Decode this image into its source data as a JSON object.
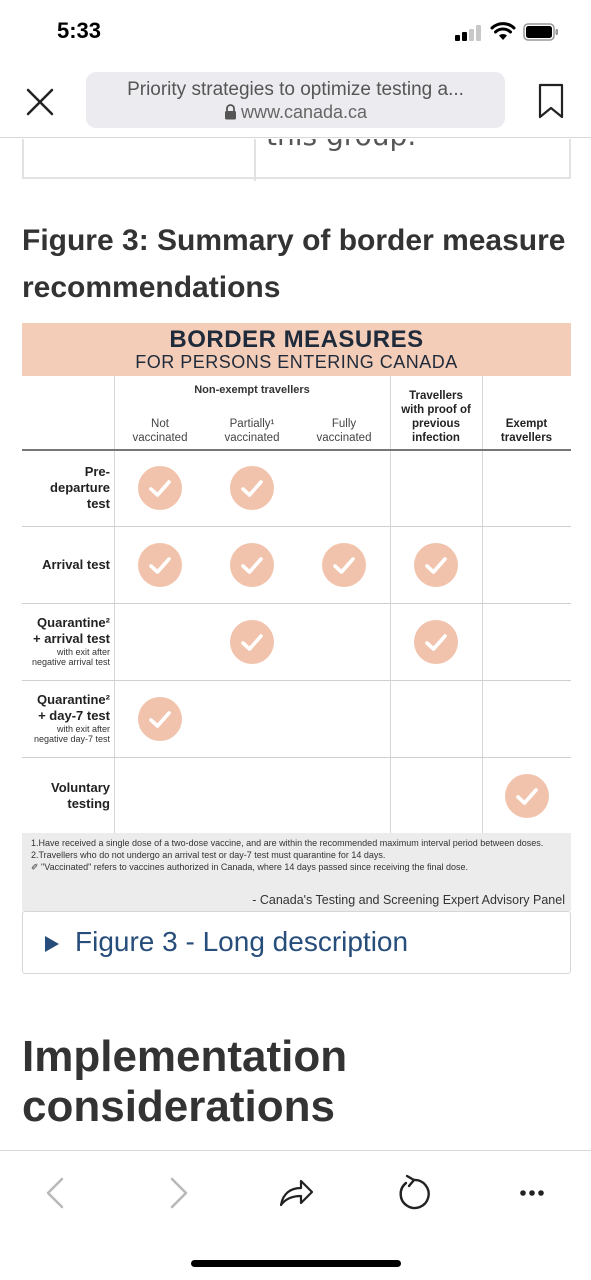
{
  "status": {
    "time": "5:33"
  },
  "browser": {
    "page_title": "Priority strategies to optimize testing a...",
    "host": "www.canada.ca"
  },
  "content": {
    "prev_table_text": "this group.",
    "figure_title": "Figure 3: Summary of border measure recommendations",
    "figure": {
      "banner_line1": "BORDER MEASURES",
      "banner_line2": "FOR PERSONS ENTERING CANADA",
      "group_header": "Non-exempt travellers",
      "columns": [
        {
          "label": "Not vaccinated",
          "bold": false
        },
        {
          "label": "Partially¹ vaccinated",
          "bold": false
        },
        {
          "label": "Fully vaccinated",
          "bold": false
        },
        {
          "label": "Travellers with proof of previous infection",
          "bold": true
        },
        {
          "label": "Exempt travellers",
          "bold": true
        }
      ],
      "rows": [
        {
          "label": "Pre-\ndeparture\ntest",
          "sub": "",
          "checks": [
            true,
            true,
            false,
            false,
            false
          ]
        },
        {
          "label": "Arrival test",
          "sub": "",
          "checks": [
            true,
            true,
            true,
            true,
            false
          ]
        },
        {
          "label": "Quarantine²\n+ arrival test",
          "sub": "with exit after\nnegative arrival test",
          "checks": [
            false,
            true,
            false,
            true,
            false
          ]
        },
        {
          "label": "Quarantine²\n+ day-7 test",
          "sub": "with exit after\nnegative day-7 test",
          "checks": [
            true,
            false,
            false,
            false,
            false
          ]
        },
        {
          "label": "Voluntary\ntesting",
          "sub": "",
          "checks": [
            false,
            false,
            false,
            false,
            true
          ]
        }
      ],
      "footnotes": [
        "1.Have received a single dose of a two-dose vaccine, and are within the recommended maximum interval period between doses.",
        "2.Travellers who do not undergo an arrival test or day-7 test must quarantine for 14 days.",
        "✐ \"Vaccinated\" refers to vaccines authorized in Canada, where 14 days passed since receiving the final dose."
      ],
      "source": "- Canada's Testing and Screening Expert Advisory Panel",
      "check_color": "#f2c3ac",
      "banner_color": "#f4cdb8"
    },
    "long_description_label": "Figure 3 - Long description",
    "section_heading": "Implementation considerations"
  },
  "toolbar": {
    "icons": [
      "back-icon",
      "forward-icon",
      "share-icon",
      "reload-icon",
      "more-icon"
    ]
  }
}
